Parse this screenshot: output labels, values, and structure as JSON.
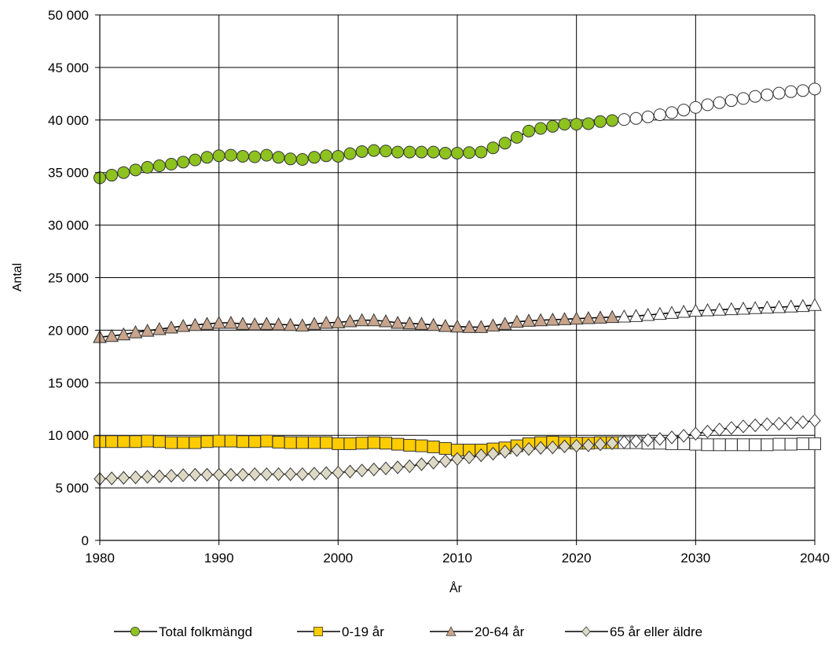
{
  "chart_data": {
    "type": "line",
    "title": "",
    "xlabel": "År",
    "ylabel": "Antal",
    "xlim": [
      1980,
      2040
    ],
    "ylim": [
      0,
      50000
    ],
    "x_ticks": [
      1980,
      1990,
      2000,
      2010,
      2020,
      2030,
      2040
    ],
    "x_tick_labels": [
      "1980",
      "1990",
      "2000",
      "2010",
      "2020",
      "2030",
      "2040"
    ],
    "y_ticks": [
      0,
      5000,
      10000,
      15000,
      20000,
      25000,
      30000,
      35000,
      40000,
      45000,
      50000
    ],
    "y_tick_labels": [
      "0",
      "5 000",
      "10 000",
      "15 000",
      "20 000",
      "25 000",
      "30 000",
      "35 000",
      "40 000",
      "45 000",
      "50 000"
    ],
    "grid": true,
    "legend_position": "bottom",
    "forecast_start_year": 2024,
    "x": [
      1980,
      1981,
      1982,
      1983,
      1984,
      1985,
      1986,
      1987,
      1988,
      1989,
      1990,
      1991,
      1992,
      1993,
      1994,
      1995,
      1996,
      1997,
      1998,
      1999,
      2000,
      2001,
      2002,
      2003,
      2004,
      2005,
      2006,
      2007,
      2008,
      2009,
      2010,
      2011,
      2012,
      2013,
      2014,
      2015,
      2016,
      2017,
      2018,
      2019,
      2020,
      2021,
      2022,
      2023,
      2024,
      2025,
      2026,
      2027,
      2028,
      2029,
      2030,
      2031,
      2032,
      2033,
      2034,
      2035,
      2036,
      2037,
      2038,
      2039,
      2040
    ],
    "series": [
      {
        "name": "Total folkmängd",
        "marker": "circle",
        "color": "#8dc21f",
        "values": [
          34500,
          34750,
          35000,
          35250,
          35500,
          35650,
          35800,
          36000,
          36200,
          36450,
          36600,
          36650,
          36550,
          36500,
          36650,
          36450,
          36300,
          36250,
          36450,
          36600,
          36550,
          36800,
          37000,
          37100,
          37050,
          36950,
          36950,
          36950,
          36950,
          36850,
          36850,
          36900,
          36950,
          37350,
          37800,
          38350,
          38950,
          39200,
          39400,
          39600,
          39600,
          39650,
          39850,
          39950,
          40050,
          40150,
          40300,
          40500,
          40700,
          40950,
          41200,
          41450,
          41650,
          41850,
          42050,
          42250,
          42400,
          42550,
          42700,
          42800,
          42950
        ]
      },
      {
        "name": "0-19 år",
        "marker": "square",
        "color": "#ffcc00",
        "values": [
          9400,
          9400,
          9400,
          9400,
          9450,
          9400,
          9300,
          9300,
          9300,
          9400,
          9450,
          9450,
          9400,
          9400,
          9450,
          9350,
          9300,
          9300,
          9300,
          9300,
          9200,
          9200,
          9250,
          9300,
          9250,
          9150,
          9050,
          9000,
          8900,
          8750,
          8600,
          8600,
          8600,
          8700,
          8800,
          9000,
          9200,
          9300,
          9350,
          9300,
          9250,
          9250,
          9300,
          9300,
          9300,
          9300,
          9250,
          9250,
          9200,
          9200,
          9150,
          9100,
          9100,
          9100,
          9100,
          9100,
          9100,
          9150,
          9150,
          9200,
          9200
        ]
      },
      {
        "name": "20-64 år",
        "marker": "triangle",
        "color": "#c8a48c",
        "values": [
          19350,
          19450,
          19600,
          19800,
          19950,
          20100,
          20250,
          20400,
          20500,
          20600,
          20700,
          20700,
          20600,
          20550,
          20600,
          20550,
          20500,
          20450,
          20600,
          20700,
          20750,
          20850,
          20950,
          20950,
          20850,
          20700,
          20650,
          20600,
          20500,
          20400,
          20350,
          20300,
          20300,
          20450,
          20600,
          20800,
          20900,
          20950,
          21000,
          21050,
          21100,
          21150,
          21200,
          21250,
          21300,
          21350,
          21450,
          21550,
          21650,
          21750,
          21850,
          21900,
          21950,
          22000,
          22050,
          22100,
          22150,
          22200,
          22250,
          22300,
          22400
        ]
      },
      {
        "name": "65 år eller äldre",
        "marker": "diamond",
        "color": "#ddd9c4",
        "values": [
          5850,
          5900,
          5950,
          6000,
          6050,
          6100,
          6150,
          6200,
          6250,
          6250,
          6250,
          6250,
          6250,
          6300,
          6300,
          6300,
          6300,
          6300,
          6350,
          6400,
          6450,
          6550,
          6650,
          6750,
          6850,
          6950,
          7050,
          7250,
          7400,
          7550,
          7750,
          7900,
          8100,
          8250,
          8450,
          8600,
          8700,
          8800,
          8850,
          8950,
          9000,
          9050,
          9150,
          9250,
          9350,
          9450,
          9550,
          9650,
          9800,
          9950,
          10150,
          10350,
          10550,
          10700,
          10850,
          10950,
          11050,
          11100,
          11150,
          11250,
          11400
        ]
      }
    ]
  }
}
